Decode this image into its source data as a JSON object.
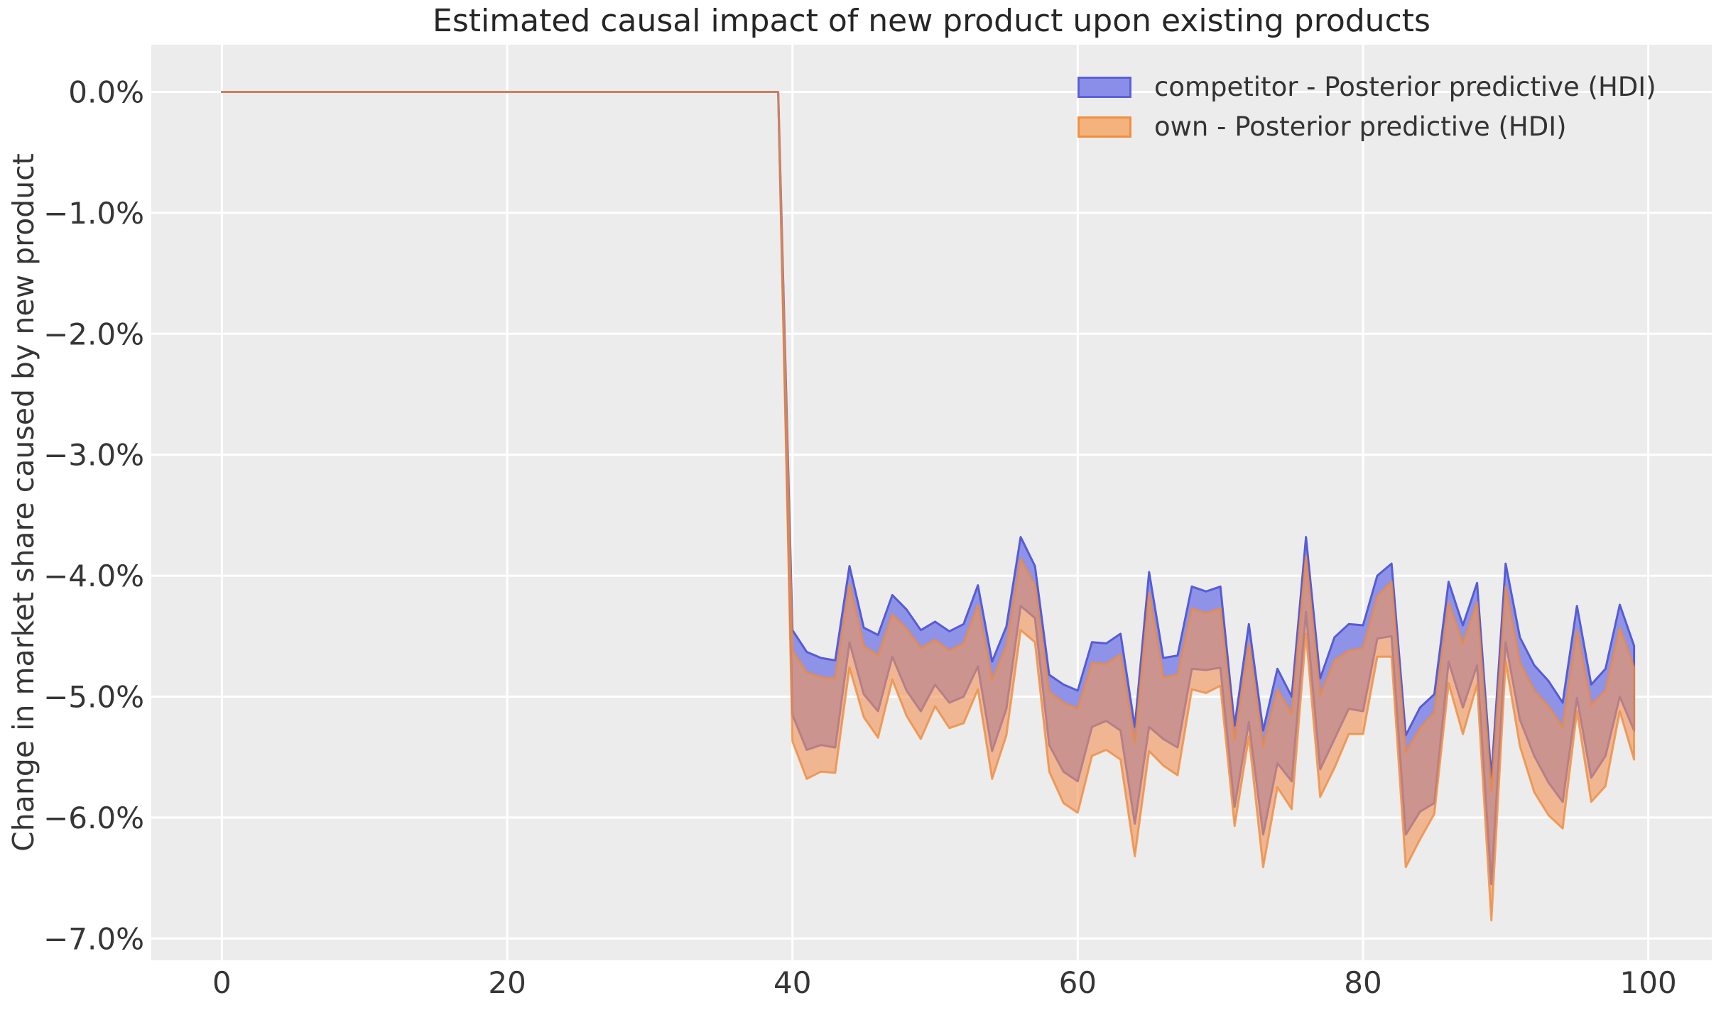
{
  "figure": {
    "background": "#ffffff",
    "plot_background": "#ececec",
    "grid_color": "#ffffff",
    "text_color": "#363636",
    "title_color": "#262626"
  },
  "chart_data": {
    "type": "area",
    "title": "Estimated causal impact of new product upon existing products",
    "xlabel": "",
    "ylabel": "Change in market share caused by new product",
    "grid": "on",
    "legend_position": "upper right",
    "xlim": [
      -4.95,
      104.45
    ],
    "ylim": [
      0.39,
      -7.18
    ],
    "xticks": [
      0,
      20,
      40,
      60,
      80,
      100
    ],
    "yticks": {
      "values": [
        0,
        -1,
        -2,
        -3,
        -4,
        -5,
        -6,
        -7
      ],
      "labels": [
        "0.0%",
        "−1.0%",
        "−2.0%",
        "−3.0%",
        "−4.0%",
        "−5.0%",
        "−6.0%",
        "−7.0%"
      ]
    },
    "x": [
      0,
      1,
      2,
      3,
      4,
      5,
      6,
      7,
      8,
      9,
      10,
      11,
      12,
      13,
      14,
      15,
      16,
      17,
      18,
      19,
      20,
      21,
      22,
      23,
      24,
      25,
      26,
      27,
      28,
      29,
      30,
      31,
      32,
      33,
      34,
      35,
      36,
      37,
      38,
      39,
      40,
      41,
      42,
      43,
      44,
      45,
      46,
      47,
      48,
      49,
      50,
      51,
      52,
      53,
      54,
      55,
      56,
      57,
      58,
      59,
      60,
      61,
      62,
      63,
      64,
      65,
      66,
      67,
      68,
      69,
      70,
      71,
      72,
      73,
      74,
      75,
      76,
      77,
      78,
      79,
      80,
      81,
      82,
      83,
      84,
      85,
      86,
      87,
      88,
      89,
      90,
      91,
      92,
      93,
      94,
      95,
      96,
      97,
      98,
      99
    ],
    "series": [
      {
        "id": "competitor",
        "name": "competitor - Posterior predictive (HDI)",
        "band": "HDI",
        "fill": "#8f93e7",
        "fill_opacity": 1,
        "edge": "#565cd6",
        "edge_opacity": 1,
        "legend_fill": "#8a8ee8",
        "legend_edge": "#5c60d8",
        "hi": [
          0,
          0,
          0,
          0,
          0,
          0,
          0,
          0,
          0,
          0,
          0,
          0,
          0,
          0,
          0,
          0,
          0,
          0,
          0,
          0,
          0,
          0,
          0,
          0,
          0,
          0,
          0,
          0,
          0,
          0,
          0,
          0,
          0,
          0,
          0,
          0,
          0,
          0,
          0,
          0,
          -4.45,
          -4.63,
          -4.68,
          -4.7,
          -3.92,
          -4.43,
          -4.49,
          -4.16,
          -4.28,
          -4.45,
          -4.38,
          -4.46,
          -4.4,
          -4.08,
          -4.71,
          -4.42,
          -3.68,
          -3.92,
          -4.82,
          -4.9,
          -4.95,
          -4.55,
          -4.56,
          -4.48,
          -5.25,
          -3.97,
          -4.68,
          -4.66,
          -4.09,
          -4.13,
          -4.09,
          -5.24,
          -4.4,
          -5.28,
          -4.77,
          -5.0,
          -3.68,
          -4.85,
          -4.51,
          -4.4,
          -4.41,
          -4.0,
          -3.9,
          -5.32,
          -5.09,
          -4.98,
          -4.05,
          -4.41,
          -4.06,
          -5.67,
          -3.9,
          -4.51,
          -4.74,
          -4.87,
          -5.05,
          -4.25,
          -4.9,
          -4.77,
          -4.24,
          -4.58
        ],
        "lo": [
          0,
          0,
          0,
          0,
          0,
          0,
          0,
          0,
          0,
          0,
          0,
          0,
          0,
          0,
          0,
          0,
          0,
          0,
          0,
          0,
          0,
          0,
          0,
          0,
          0,
          0,
          0,
          0,
          0,
          0,
          0,
          0,
          0,
          0,
          0,
          0,
          0,
          0,
          0,
          0,
          -5.15,
          -5.44,
          -5.4,
          -5.42,
          -4.55,
          -4.98,
          -5.12,
          -4.67,
          -4.95,
          -5.12,
          -4.9,
          -5.05,
          -5.0,
          -4.75,
          -5.45,
          -5.1,
          -4.25,
          -4.35,
          -5.4,
          -5.62,
          -5.7,
          -5.25,
          -5.2,
          -5.28,
          -6.05,
          -5.25,
          -5.35,
          -5.42,
          -4.77,
          -4.78,
          -4.76,
          -5.91,
          -5.21,
          -6.14,
          -5.55,
          -5.7,
          -4.3,
          -5.6,
          -5.35,
          -5.1,
          -5.12,
          -4.52,
          -4.5,
          -6.14,
          -5.95,
          -5.88,
          -4.71,
          -5.09,
          -4.74,
          -6.55,
          -4.55,
          -5.19,
          -5.49,
          -5.71,
          -5.87,
          -5.01,
          -5.67,
          -5.49,
          -5.0,
          -5.28
        ]
      },
      {
        "id": "own",
        "name": "own - Posterior predictive (HDI)",
        "band": "HDI",
        "fill": "#f29558",
        "fill_opacity": 0.62,
        "edge": "#ed8b3d",
        "edge_opacity": 0.78,
        "legend_fill": "#f4b27c",
        "legend_edge": "#ee9143",
        "hi": [
          0,
          0,
          0,
          0,
          0,
          0,
          0,
          0,
          0,
          0,
          0,
          0,
          0,
          0,
          0,
          0,
          0,
          0,
          0,
          0,
          0,
          0,
          0,
          0,
          0,
          0,
          0,
          0,
          0,
          0,
          0,
          0,
          0,
          0,
          0,
          0,
          0,
          0,
          0,
          0,
          -4.62,
          -4.8,
          -4.84,
          -4.85,
          -4.07,
          -4.58,
          -4.66,
          -4.32,
          -4.44,
          -4.6,
          -4.53,
          -4.62,
          -4.56,
          -4.24,
          -4.86,
          -4.58,
          -3.86,
          -4.08,
          -4.96,
          -5.05,
          -5.1,
          -4.72,
          -4.73,
          -4.65,
          -5.38,
          -4.14,
          -4.84,
          -4.82,
          -4.27,
          -4.31,
          -4.27,
          -5.36,
          -4.56,
          -5.41,
          -4.94,
          -5.14,
          -3.84,
          -4.99,
          -4.7,
          -4.62,
          -4.6,
          -4.17,
          -4.05,
          -5.46,
          -5.26,
          -5.13,
          -4.22,
          -4.56,
          -4.22,
          -5.79,
          -4.09,
          -4.72,
          -4.95,
          -5.08,
          -5.25,
          -4.45,
          -5.07,
          -4.95,
          -4.43,
          -4.76
        ],
        "lo": [
          0,
          0,
          0,
          0,
          0,
          0,
          0,
          0,
          0,
          0,
          0,
          0,
          0,
          0,
          0,
          0,
          0,
          0,
          0,
          0,
          0,
          0,
          0,
          0,
          0,
          0,
          0,
          0,
          0,
          0,
          0,
          0,
          0,
          0,
          0,
          0,
          0,
          0,
          0,
          0,
          -5.37,
          -5.68,
          -5.62,
          -5.63,
          -4.76,
          -5.17,
          -5.34,
          -4.86,
          -5.16,
          -5.35,
          -5.08,
          -5.26,
          -5.22,
          -4.94,
          -5.68,
          -5.32,
          -4.45,
          -4.55,
          -5.62,
          -5.88,
          -5.96,
          -5.49,
          -5.44,
          -5.52,
          -6.32,
          -5.45,
          -5.57,
          -5.65,
          -4.94,
          -4.97,
          -4.91,
          -6.07,
          -5.33,
          -6.41,
          -5.75,
          -5.93,
          -4.48,
          -5.83,
          -5.59,
          -5.31,
          -5.31,
          -4.67,
          -4.67,
          -6.41,
          -6.18,
          -5.97,
          -4.89,
          -5.31,
          -4.9,
          -6.85,
          -4.71,
          -5.41,
          -5.79,
          -5.98,
          -6.09,
          -5.12,
          -5.87,
          -5.74,
          -5.12,
          -5.52
        ]
      }
    ]
  }
}
